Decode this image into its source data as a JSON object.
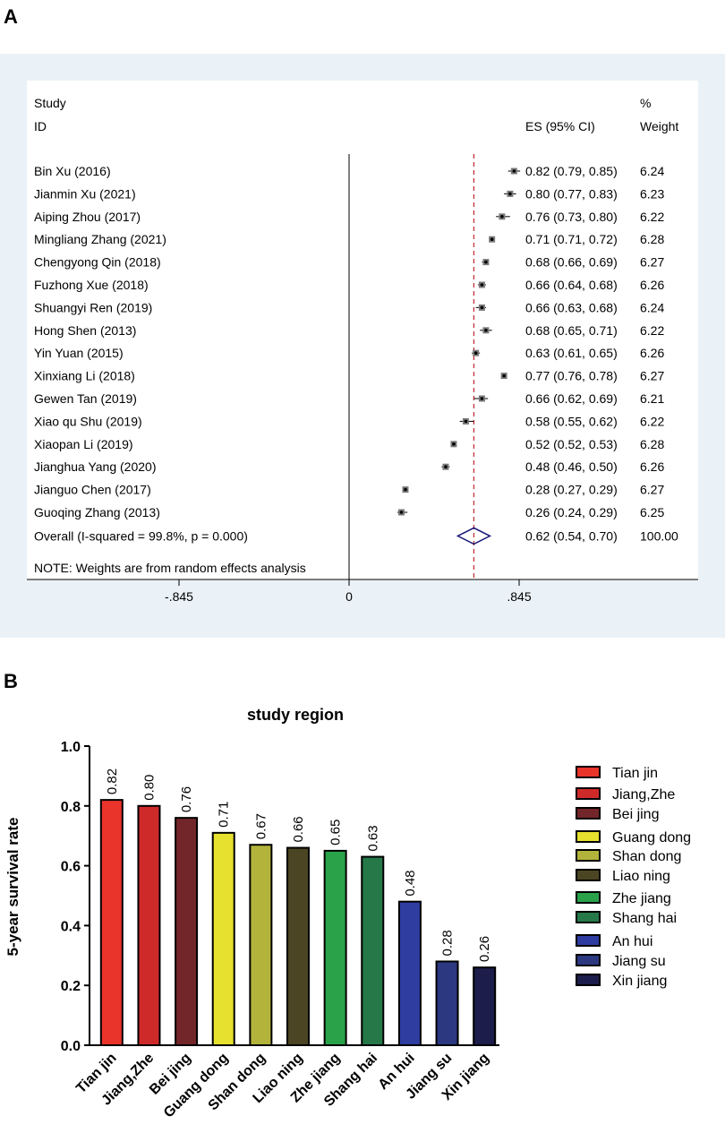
{
  "panel_a_label": "A",
  "panel_b_label": "B",
  "chart_data": [
    {
      "type": "forest",
      "header": {
        "study": "Study",
        "id": "ID",
        "es": "ES (95% CI)",
        "pct": "%",
        "weight": "Weight"
      },
      "studies": [
        {
          "name": "Bin Xu (2016)",
          "es": 0.82,
          "lo": 0.79,
          "hi": 0.85,
          "ci_text": "0.82 (0.79, 0.85)",
          "weight": "6.24"
        },
        {
          "name": "Jianmin Xu (2021)",
          "es": 0.8,
          "lo": 0.77,
          "hi": 0.83,
          "ci_text": "0.80 (0.77, 0.83)",
          "weight": "6.23"
        },
        {
          "name": "Aiping Zhou (2017)",
          "es": 0.76,
          "lo": 0.73,
          "hi": 0.8,
          "ci_text": "0.76 (0.73, 0.80)",
          "weight": "6.22"
        },
        {
          "name": "Mingliang Zhang (2021)",
          "es": 0.71,
          "lo": 0.71,
          "hi": 0.72,
          "ci_text": "0.71 (0.71, 0.72)",
          "weight": "6.28"
        },
        {
          "name": "Chengyong Qin (2018)",
          "es": 0.68,
          "lo": 0.66,
          "hi": 0.69,
          "ci_text": "0.68 (0.66, 0.69)",
          "weight": "6.27"
        },
        {
          "name": "Fuzhong Xue (2018)",
          "es": 0.66,
          "lo": 0.64,
          "hi": 0.68,
          "ci_text": "0.66 (0.64, 0.68)",
          "weight": "6.26"
        },
        {
          "name": "Shuangyi Ren (2019)",
          "es": 0.66,
          "lo": 0.63,
          "hi": 0.68,
          "ci_text": "0.66 (0.63, 0.68)",
          "weight": "6.24"
        },
        {
          "name": "Hong Shen (2013)",
          "es": 0.68,
          "lo": 0.65,
          "hi": 0.71,
          "ci_text": "0.68 (0.65, 0.71)",
          "weight": "6.22"
        },
        {
          "name": "Yin Yuan (2015)",
          "es": 0.63,
          "lo": 0.61,
          "hi": 0.65,
          "ci_text": "0.63 (0.61, 0.65)",
          "weight": "6.26"
        },
        {
          "name": "Xinxiang Li (2018)",
          "es": 0.77,
          "lo": 0.76,
          "hi": 0.78,
          "ci_text": "0.77 (0.76, 0.78)",
          "weight": "6.27"
        },
        {
          "name": "Gewen Tan (2019)",
          "es": 0.66,
          "lo": 0.62,
          "hi": 0.69,
          "ci_text": "0.66 (0.62, 0.69)",
          "weight": "6.21"
        },
        {
          "name": "Xiao qu Shu (2019)",
          "es": 0.58,
          "lo": 0.55,
          "hi": 0.62,
          "ci_text": "0.58 (0.55, 0.62)",
          "weight": "6.22"
        },
        {
          "name": "Xiaopan Li (2019)",
          "es": 0.52,
          "lo": 0.52,
          "hi": 0.53,
          "ci_text": "0.52 (0.52, 0.53)",
          "weight": "6.28"
        },
        {
          "name": "Jianghua Yang (2020)",
          "es": 0.48,
          "lo": 0.46,
          "hi": 0.5,
          "ci_text": "0.48 (0.46, 0.50)",
          "weight": "6.26"
        },
        {
          "name": "Jianguo Chen (2017)",
          "es": 0.28,
          "lo": 0.27,
          "hi": 0.29,
          "ci_text": "0.28 (0.27, 0.29)",
          "weight": "6.27"
        },
        {
          "name": "Guoqing Zhang (2013)",
          "es": 0.26,
          "lo": 0.24,
          "hi": 0.29,
          "ci_text": "0.26 (0.24, 0.29)",
          "weight": "6.25"
        }
      ],
      "overall": {
        "label": "Overall  (I-squared = 99.8%, p = 0.000)",
        "es": 0.62,
        "lo": 0.54,
        "hi": 0.7,
        "ci_text": "0.62 (0.54, 0.70)",
        "weight": "100.00"
      },
      "note": "NOTE: Weights are from random effects analysis",
      "xrange": [
        -0.845,
        0.845
      ],
      "ticks": [
        {
          "value": -0.845,
          "label": "-.845"
        },
        {
          "value": 0,
          "label": "0"
        },
        {
          "value": 0.845,
          "label": ".845"
        }
      ],
      "colors": {
        "background": "#eaf2f7",
        "marker": "#000000",
        "diamond": "#1a1a7a",
        "dashed": "#c0262c"
      }
    },
    {
      "type": "bar",
      "title": "study region",
      "ylabel": "5-year survival rate",
      "ylim": [
        0,
        1.0
      ],
      "yticks": [
        "0.0",
        "0.2",
        "0.4",
        "0.6",
        "0.8",
        "1.0"
      ],
      "categories": [
        "Tian jin",
        "Jiang,Zhe",
        "Bei jing",
        "Guang dong",
        "Shan dong",
        "Liao ning",
        "Zhe jiang",
        "Shang hai",
        "An hui",
        "Jiang su",
        "Xin jiang"
      ],
      "values": [
        0.82,
        0.8,
        0.76,
        0.71,
        0.67,
        0.66,
        0.65,
        0.63,
        0.48,
        0.28,
        0.26
      ],
      "value_labels": [
        "0.82",
        "0.80",
        "0.76",
        "0.71",
        "0.67",
        "0.66",
        "0.65",
        "0.63",
        "0.48",
        "0.28",
        "0.26"
      ],
      "colors": [
        "#e8342b",
        "#cf2a2a",
        "#73262a",
        "#e6e02e",
        "#b3b33c",
        "#4c4523",
        "#2aa24a",
        "#267848",
        "#2f3ca0",
        "#2c3880",
        "#1c1d4a"
      ],
      "legend_position": "right"
    }
  ]
}
